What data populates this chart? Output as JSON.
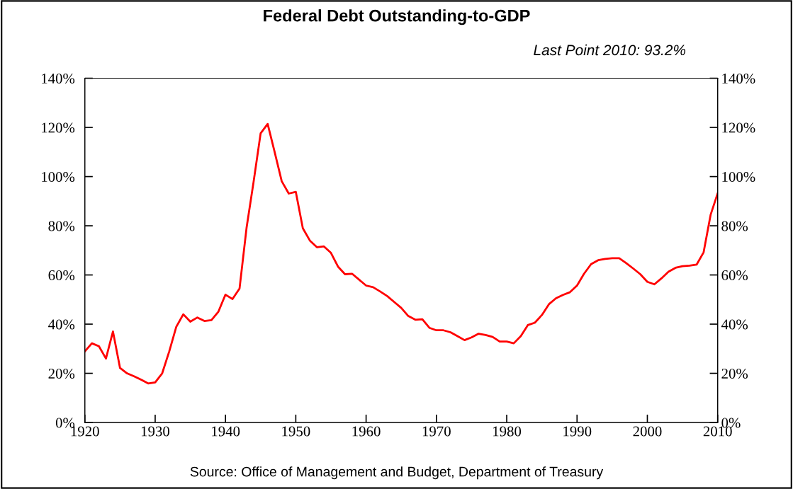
{
  "chart_data": {
    "type": "line",
    "title": "Federal Debt Outstanding-to-GDP",
    "subtitle": "Last Point 2010: 93.2%",
    "x": [
      1920,
      1921,
      1922,
      1923,
      1924,
      1925,
      1926,
      1927,
      1928,
      1929,
      1930,
      1931,
      1932,
      1933,
      1934,
      1935,
      1936,
      1937,
      1938,
      1939,
      1940,
      1941,
      1942,
      1943,
      1944,
      1945,
      1946,
      1947,
      1948,
      1949,
      1950,
      1951,
      1952,
      1953,
      1954,
      1955,
      1956,
      1957,
      1958,
      1959,
      1960,
      1961,
      1962,
      1963,
      1964,
      1965,
      1966,
      1967,
      1968,
      1969,
      1970,
      1971,
      1972,
      1973,
      1974,
      1975,
      1976,
      1977,
      1978,
      1979,
      1980,
      1981,
      1982,
      1983,
      1984,
      1985,
      1986,
      1987,
      1988,
      1989,
      1990,
      1991,
      1992,
      1993,
      1994,
      1995,
      1996,
      1997,
      1998,
      1999,
      2000,
      2001,
      2002,
      2003,
      2004,
      2005,
      2006,
      2007,
      2008,
      2009,
      2010
    ],
    "series": [
      {
        "color": "#ff0000",
        "values": [
          28.9,
          32.2,
          31.0,
          26.0,
          37.0,
          22.2,
          20.0,
          18.8,
          17.4,
          15.9,
          16.3,
          20.0,
          28.9,
          38.9,
          44.0,
          41.0,
          42.7,
          41.3,
          41.6,
          45.1,
          52.0,
          50.2,
          54.5,
          79.2,
          97.9,
          117.6,
          121.4,
          109.9,
          98.1,
          93.1,
          93.8,
          79,
          74.0,
          71.3,
          71.6,
          69.0,
          63.4,
          60.3,
          60.5,
          58.1,
          55.7,
          55.0,
          53.3,
          51.4,
          49.0,
          46.6,
          43.3,
          41.8,
          42.0,
          38.5,
          37.5,
          37.5,
          36.7,
          35.1,
          33.5,
          34.6,
          36.1,
          35.6,
          34.8,
          32.9,
          32.9,
          32.2,
          35.1,
          39.6,
          40.6,
          43.7,
          48.1,
          50.5,
          51.9,
          53.0,
          55.7,
          60.5,
          64.4,
          66.0,
          66.5,
          66.8,
          66.8,
          64.8,
          62.6,
          60.3,
          57.2,
          56.2,
          58.6,
          61.3,
          62.9,
          63.6,
          63.8,
          64.2,
          69.2,
          84.5,
          93.2
        ]
      }
    ],
    "xlim": [
      1920,
      2010
    ],
    "xticks": [
      1920,
      1930,
      1940,
      1950,
      1960,
      1970,
      1980,
      1990,
      2000,
      2010
    ],
    "ylim": [
      0,
      140
    ],
    "yticks": [
      {
        "value": 0,
        "label": "0%"
      },
      {
        "value": 20,
        "label": "20%"
      },
      {
        "value": 40,
        "label": "40%"
      },
      {
        "value": 60,
        "label": "60%"
      },
      {
        "value": 80,
        "label": "80%"
      },
      {
        "value": 100,
        "label": "100%"
      },
      {
        "value": 120,
        "label": "120%"
      },
      {
        "value": 140,
        "label": "140%"
      }
    ],
    "y2lim": [
      0,
      140
    ],
    "y2ticks": [
      {
        "value": 0,
        "label": "0%"
      },
      {
        "value": 20,
        "label": "20%"
      },
      {
        "value": 40,
        "label": "40%"
      },
      {
        "value": 60,
        "label": "60%"
      },
      {
        "value": 80,
        "label": "80%"
      },
      {
        "value": 100,
        "label": "100%"
      },
      {
        "value": 120,
        "label": "120%"
      },
      {
        "value": 140,
        "label": "140%"
      }
    ],
    "grid": false,
    "legend": false,
    "marker": "none",
    "line_style": "solid",
    "annotations": [
      "Source: Office of Management and Budget, Department of Treasury"
    ]
  }
}
